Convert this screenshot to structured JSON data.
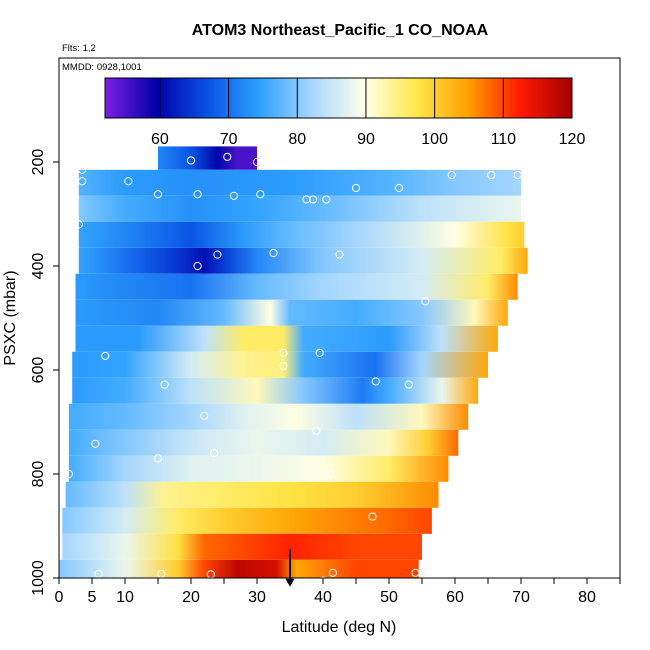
{
  "chart_data": {
    "type": "heatmap",
    "title": "ATOM3 Northeast_Pacific_1 CO_NOAA",
    "flights_note": "Flts: 1,2",
    "dates_note": "MMDD: 0928,1001",
    "xlabel": "Latitude (deg N)",
    "ylabel": "PSXC (mbar)",
    "xlim": [
      0,
      85
    ],
    "ylim": [
      1000,
      0
    ],
    "x_ticks": [
      0,
      5,
      10,
      20,
      30,
      40,
      50,
      60,
      70,
      80
    ],
    "y_ticks": [
      200,
      400,
      600,
      800,
      1000
    ],
    "colorbar": {
      "range": [
        52,
        120
      ],
      "ticks": [
        60,
        70,
        80,
        90,
        100,
        110,
        120
      ],
      "colors": [
        "#7B1FE0",
        "#0000A8",
        "#0A55E6",
        "#2EA2FF",
        "#A9D8FF",
        "#FFFFE8",
        "#FFE84A",
        "#FF9F00",
        "#FF1A00",
        "#A40000"
      ]
    },
    "bands": [
      {
        "p_top": 170,
        "p_bot": 215,
        "x_start": 15,
        "x_end": 30,
        "stops": [
          [
            15,
            72
          ],
          [
            20,
            67
          ],
          [
            24,
            60
          ],
          [
            27,
            55
          ],
          [
            30,
            55
          ]
        ]
      },
      {
        "p_top": 215,
        "p_bot": 265,
        "x_start": 3,
        "x_end": 70,
        "stops": [
          [
            3,
            77
          ],
          [
            10,
            74
          ],
          [
            20,
            73
          ],
          [
            35,
            74
          ],
          [
            50,
            77
          ],
          [
            60,
            80
          ],
          [
            70,
            82
          ]
        ]
      },
      {
        "p_top": 265,
        "p_bot": 315,
        "x_start": 3,
        "x_end": 70,
        "stops": [
          [
            3,
            80
          ],
          [
            10,
            76
          ],
          [
            20,
            73
          ],
          [
            30,
            75
          ],
          [
            40,
            78
          ],
          [
            55,
            84
          ],
          [
            70,
            88
          ]
        ]
      },
      {
        "p_top": 315,
        "p_bot": 365,
        "x_start": 3,
        "x_end": 70.5,
        "stops": [
          [
            3,
            75
          ],
          [
            10,
            72
          ],
          [
            20,
            67
          ],
          [
            28,
            74
          ],
          [
            35,
            78
          ],
          [
            45,
            82
          ],
          [
            60,
            90
          ],
          [
            68,
            98
          ],
          [
            70.5,
            100
          ]
        ]
      },
      {
        "p_top": 365,
        "p_bot": 415,
        "x_start": 3,
        "x_end": 71,
        "stops": [
          [
            3,
            75
          ],
          [
            10,
            70
          ],
          [
            17,
            65
          ],
          [
            22,
            61
          ],
          [
            25,
            65
          ],
          [
            30,
            72
          ],
          [
            40,
            80
          ],
          [
            55,
            86
          ],
          [
            67,
            96
          ],
          [
            71,
            104
          ]
        ]
      },
      {
        "p_top": 415,
        "p_bot": 465,
        "x_start": 2.5,
        "x_end": 69.5,
        "stops": [
          [
            2.5,
            74
          ],
          [
            10,
            72
          ],
          [
            20,
            70
          ],
          [
            30,
            78
          ],
          [
            40,
            82
          ],
          [
            55,
            86
          ],
          [
            65,
            96
          ],
          [
            69.5,
            106
          ]
        ]
      },
      {
        "p_top": 465,
        "p_bot": 515,
        "x_start": 2.5,
        "x_end": 68,
        "stops": [
          [
            2.5,
            74
          ],
          [
            15,
            72
          ],
          [
            25,
            78
          ],
          [
            32,
            90
          ],
          [
            35,
            78
          ],
          [
            45,
            76
          ],
          [
            55,
            80
          ],
          [
            63,
            92
          ],
          [
            68,
            104
          ]
        ]
      },
      {
        "p_top": 515,
        "p_bot": 565,
        "x_start": 2.5,
        "x_end": 66.5,
        "stops": [
          [
            2.5,
            74
          ],
          [
            12,
            74
          ],
          [
            22,
            84
          ],
          [
            28,
            96
          ],
          [
            34,
            96
          ],
          [
            37,
            76
          ],
          [
            50,
            74
          ],
          [
            58,
            84
          ],
          [
            66.5,
            104
          ]
        ]
      },
      {
        "p_top": 565,
        "p_bot": 615,
        "x_start": 2,
        "x_end": 65,
        "stops": [
          [
            2,
            74
          ],
          [
            10,
            75
          ],
          [
            20,
            86
          ],
          [
            28,
            94
          ],
          [
            34,
            95
          ],
          [
            37,
            76
          ],
          [
            48,
            70
          ],
          [
            55,
            82
          ],
          [
            65,
            104
          ]
        ]
      },
      {
        "p_top": 615,
        "p_bot": 665,
        "x_start": 2,
        "x_end": 63.5,
        "stops": [
          [
            2,
            74
          ],
          [
            10,
            76
          ],
          [
            20,
            84
          ],
          [
            30,
            92
          ],
          [
            37,
            80
          ],
          [
            46,
            71
          ],
          [
            50,
            76
          ],
          [
            58,
            88
          ],
          [
            63.5,
            104
          ]
        ]
      },
      {
        "p_top": 665,
        "p_bot": 715,
        "x_start": 1.5,
        "x_end": 62,
        "stops": [
          [
            1.5,
            76
          ],
          [
            10,
            78
          ],
          [
            20,
            82
          ],
          [
            28,
            87
          ],
          [
            36,
            90
          ],
          [
            45,
            84
          ],
          [
            55,
            92
          ],
          [
            62,
            106
          ]
        ]
      },
      {
        "p_top": 715,
        "p_bot": 765,
        "x_start": 1.5,
        "x_end": 60.5,
        "stops": [
          [
            1.5,
            76
          ],
          [
            10,
            80
          ],
          [
            20,
            85
          ],
          [
            30,
            88
          ],
          [
            40,
            86
          ],
          [
            50,
            92
          ],
          [
            56,
            100
          ],
          [
            60.5,
            108
          ]
        ]
      },
      {
        "p_top": 765,
        "p_bot": 815,
        "x_start": 1.5,
        "x_end": 59,
        "stops": [
          [
            1.5,
            76
          ],
          [
            10,
            82
          ],
          [
            20,
            87
          ],
          [
            30,
            88
          ],
          [
            40,
            90
          ],
          [
            50,
            96
          ],
          [
            59,
            106
          ]
        ]
      },
      {
        "p_top": 815,
        "p_bot": 865,
        "x_start": 1,
        "x_end": 57.5,
        "stops": [
          [
            1,
            78
          ],
          [
            10,
            84
          ],
          [
            16,
            94
          ],
          [
            25,
            96
          ],
          [
            35,
            98
          ],
          [
            45,
            100
          ],
          [
            57.5,
            106
          ]
        ]
      },
      {
        "p_top": 865,
        "p_bot": 915,
        "x_start": 0.5,
        "x_end": 56.5,
        "stops": [
          [
            0.5,
            80
          ],
          [
            10,
            86
          ],
          [
            18,
            96
          ],
          [
            25,
            100
          ],
          [
            35,
            104
          ],
          [
            50,
            108
          ],
          [
            56.5,
            110
          ]
        ]
      },
      {
        "p_top": 915,
        "p_bot": 965,
        "x_start": 0.5,
        "x_end": 55,
        "stops": [
          [
            0.5,
            82
          ],
          [
            10,
            88
          ],
          [
            18,
            98
          ],
          [
            22,
            108
          ],
          [
            35,
            112
          ],
          [
            45,
            110
          ],
          [
            55,
            110
          ]
        ]
      },
      {
        "p_top": 965,
        "p_bot": 1010,
        "x_start": 0,
        "x_end": 54.5,
        "stops": [
          [
            0,
            80
          ],
          [
            10,
            88
          ],
          [
            18,
            100
          ],
          [
            22,
            110
          ],
          [
            27,
            118
          ],
          [
            33,
            116
          ],
          [
            36,
            104
          ],
          [
            45,
            110
          ],
          [
            54.5,
            110
          ]
        ]
      }
    ],
    "sample_points": [
      {
        "lat": 25.5,
        "p": 190
      },
      {
        "lat": 20,
        "p": 197
      },
      {
        "lat": 30,
        "p": 200
      },
      {
        "lat": 12.5,
        "p": 202
      },
      {
        "lat": 10,
        "p": 202
      },
      {
        "lat": 3.5,
        "p": 215
      },
      {
        "lat": 10.5,
        "p": 237
      },
      {
        "lat": 3.5,
        "p": 237
      },
      {
        "lat": 59.5,
        "p": 225
      },
      {
        "lat": 65.5,
        "p": 225
      },
      {
        "lat": 69.5,
        "p": 225
      },
      {
        "lat": 45,
        "p": 250
      },
      {
        "lat": 51.5,
        "p": 250
      },
      {
        "lat": 15,
        "p": 262
      },
      {
        "lat": 21,
        "p": 262
      },
      {
        "lat": 26.5,
        "p": 265
      },
      {
        "lat": 30.5,
        "p": 262
      },
      {
        "lat": 37.5,
        "p": 272
      },
      {
        "lat": 38.5,
        "p": 272
      },
      {
        "lat": 40.5,
        "p": 272
      },
      {
        "lat": 3,
        "p": 320
      },
      {
        "lat": 24,
        "p": 378
      },
      {
        "lat": 32.5,
        "p": 375
      },
      {
        "lat": 42.5,
        "p": 378
      },
      {
        "lat": 21,
        "p": 400
      },
      {
        "lat": 55.5,
        "p": 468
      },
      {
        "lat": 7,
        "p": 573
      },
      {
        "lat": 34,
        "p": 567
      },
      {
        "lat": 39.5,
        "p": 567
      },
      {
        "lat": 34,
        "p": 592
      },
      {
        "lat": 16,
        "p": 628
      },
      {
        "lat": 48,
        "p": 622
      },
      {
        "lat": 53,
        "p": 628
      },
      {
        "lat": 22,
        "p": 688
      },
      {
        "lat": 39,
        "p": 717
      },
      {
        "lat": 5.5,
        "p": 742
      },
      {
        "lat": 23.5,
        "p": 760
      },
      {
        "lat": 15,
        "p": 770
      },
      {
        "lat": 1.5,
        "p": 800
      },
      {
        "lat": 41,
        "p": 800
      },
      {
        "lat": 47.5,
        "p": 882
      },
      {
        "lat": 15.5,
        "p": 992
      },
      {
        "lat": 23,
        "p": 993
      },
      {
        "lat": 41.5,
        "p": 990
      },
      {
        "lat": 40,
        "p": 1005
      },
      {
        "lat": 48.5,
        "p": 1010
      },
      {
        "lat": 54,
        "p": 990
      },
      {
        "lat": 6,
        "p": 992
      }
    ],
    "marker": {
      "lat": 35,
      "p_top": 945,
      "p_bot": 1015
    }
  }
}
